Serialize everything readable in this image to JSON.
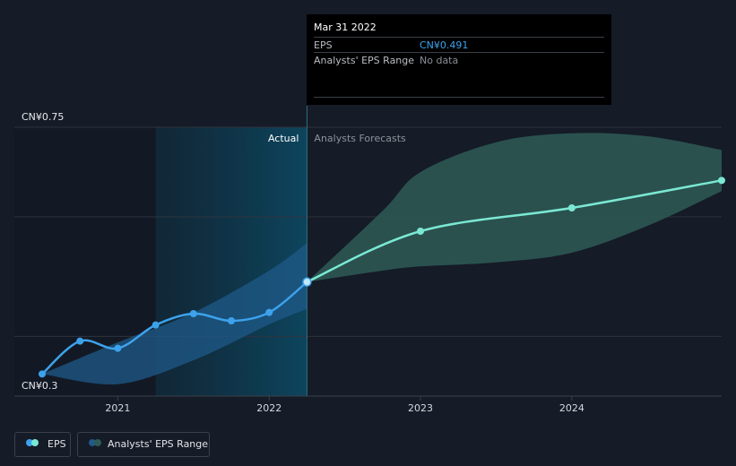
{
  "chart_data": {
    "type": "line",
    "y_min_label": "CN¥0.3",
    "y_max_label": "CN¥0.75",
    "ylim": [
      0.3,
      0.75
    ],
    "xlim": [
      2020.5,
      2024.99
    ],
    "x_ticks": [
      {
        "label": "2021",
        "x": 2021.0
      },
      {
        "label": "2022",
        "x": 2022.0
      },
      {
        "label": "2023",
        "x": 2023.0
      },
      {
        "label": "2024",
        "x": 2024.0
      }
    ],
    "gridlines_y": [
      0.3,
      0.4,
      0.6,
      0.75
    ],
    "highlight_region": [
      2021.25,
      2022.25
    ],
    "divider_x": 2022.25,
    "actual_label": "Actual",
    "forecast_label": "Analysts Forecasts",
    "series": [
      {
        "name": "EPS",
        "color": "#3da2ec",
        "points": [
          {
            "x": 2020.5,
            "y": 0.337
          },
          {
            "x": 2020.75,
            "y": 0.392
          },
          {
            "x": 2021.0,
            "y": 0.38
          },
          {
            "x": 2021.25,
            "y": 0.419
          },
          {
            "x": 2021.5,
            "y": 0.438
          },
          {
            "x": 2021.75,
            "y": 0.426
          },
          {
            "x": 2022.0,
            "y": 0.44
          },
          {
            "x": 2022.25,
            "y": 0.491
          }
        ]
      },
      {
        "name": "EPS forecast",
        "color": "#7be8d4",
        "points": [
          {
            "x": 2022.25,
            "y": 0.491
          },
          {
            "x": 2023.0,
            "y": 0.576
          },
          {
            "x": 2024.0,
            "y": 0.615
          },
          {
            "x": 2024.99,
            "y": 0.661
          }
        ]
      }
    ],
    "actual_range_band": {
      "color": "#1f5a88",
      "upper": [
        {
          "x": 2020.5,
          "y": 0.337
        },
        {
          "x": 2021.0,
          "y": 0.39
        },
        {
          "x": 2021.5,
          "y": 0.44
        },
        {
          "x": 2022.0,
          "y": 0.51
        },
        {
          "x": 2022.25,
          "y": 0.556
        }
      ],
      "lower": [
        {
          "x": 2020.5,
          "y": 0.337
        },
        {
          "x": 2021.0,
          "y": 0.32
        },
        {
          "x": 2021.5,
          "y": 0.36
        },
        {
          "x": 2022.0,
          "y": 0.42
        },
        {
          "x": 2022.25,
          "y": 0.446
        }
      ]
    },
    "forecast_range_band": {
      "color": "#2e5b56",
      "upper": [
        {
          "x": 2022.25,
          "y": 0.491
        },
        {
          "x": 2022.75,
          "y": 0.61
        },
        {
          "x": 2023.0,
          "y": 0.675
        },
        {
          "x": 2023.5,
          "y": 0.725
        },
        {
          "x": 2024.0,
          "y": 0.74
        },
        {
          "x": 2024.5,
          "y": 0.735
        },
        {
          "x": 2024.99,
          "y": 0.712
        }
      ],
      "lower": [
        {
          "x": 2022.25,
          "y": 0.491
        },
        {
          "x": 2022.75,
          "y": 0.51
        },
        {
          "x": 2023.0,
          "y": 0.517
        },
        {
          "x": 2023.5,
          "y": 0.524
        },
        {
          "x": 2024.0,
          "y": 0.54
        },
        {
          "x": 2024.5,
          "y": 0.585
        },
        {
          "x": 2024.99,
          "y": 0.643
        }
      ]
    }
  },
  "tooltip": {
    "date": "Mar 31 2022",
    "rows": [
      {
        "label": "EPS",
        "value": "CN¥0.491",
        "value_color": "#3da2ec"
      },
      {
        "label": "Analysts' EPS Range",
        "value": "No data",
        "value_color": "#8a8f96"
      }
    ]
  },
  "legend": [
    {
      "label": "EPS",
      "colors": [
        "#3da2ec",
        "#7be8d4"
      ]
    },
    {
      "label": "Analysts' EPS Range",
      "colors": [
        "#1f5a88",
        "#2e5b56"
      ]
    }
  ]
}
